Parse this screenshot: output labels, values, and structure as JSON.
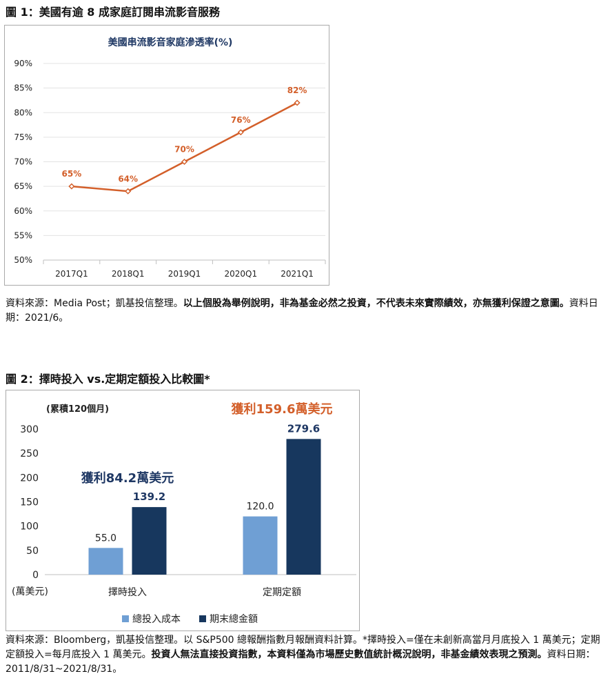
{
  "figure1": {
    "title": "圖 1：美國有逾 8 成家庭訂閱串流影音服務",
    "source_plain": "資料來源：Media Post；凱基投信整理。",
    "source_bold": "以上個股為舉例說明，非為基金必然之投資，不代表未來實際績效，亦無獲利保證之意圖。",
    "source_tail": "資料日期：2021/6。"
  },
  "figure2": {
    "title": "圖 2：擇時投入 vs.定期定額投入比較圖*",
    "source_plain": "資料來源：Bloomberg，凱基投信整理。以 S&P500 總報酬指數月報酬資料計算。*擇時投入=僅在未創新高當月月底投入 1 萬美元；定期定額投入=每月底投入 1 萬美元。",
    "source_bold": "投資人無法直接投資指數，本資料僅為市場歷史數值統計概況說明，非基金績效表現之預測。",
    "source_tail": "資料日期：2011/8/31~2021/8/31。"
  },
  "colors": {
    "line": "#d35f2a",
    "title_blue": "#1f3864",
    "bar_light": "#6f9fd4",
    "bar_dark": "#17375e",
    "profit_orange": "#d35f2a",
    "axis_text": "#222222"
  },
  "chart_data": [
    {
      "type": "line",
      "title": "美國串流影音家庭滲透率(%)",
      "x": [
        "2017Q1",
        "2018Q1",
        "2019Q1",
        "2020Q1",
        "2021Q1"
      ],
      "values": [
        65,
        64,
        70,
        76,
        82
      ],
      "data_labels": [
        "65%",
        "64%",
        "70%",
        "76%",
        "82%"
      ],
      "ylim": [
        50,
        90
      ],
      "yticks": [
        50,
        55,
        60,
        65,
        70,
        75,
        80,
        85,
        90
      ],
      "ytick_labels": [
        "50%",
        "55%",
        "60%",
        "65%",
        "70%",
        "75%",
        "80%",
        "85%",
        "90%"
      ],
      "grid": true,
      "xlabel": "",
      "ylabel": ""
    },
    {
      "type": "bar",
      "ylabel_top": "(累積120個月)",
      "unit_label": "(萬美元)",
      "categories": [
        "擇時投入",
        "定期定額"
      ],
      "series": [
        {
          "name": "總投入成本",
          "values": [
            55.0,
            120.0
          ],
          "labels": [
            "55.0",
            "120.0"
          ]
        },
        {
          "name": "期末總金額",
          "values": [
            139.2,
            279.6
          ],
          "labels": [
            "139.2",
            "279.6"
          ]
        }
      ],
      "annotations": [
        "獲利84.2萬美元",
        "獲利159.6萬美元"
      ],
      "ylim": [
        0,
        300
      ],
      "yticks": [
        0,
        50,
        100,
        150,
        200,
        250,
        300
      ],
      "ytick_labels": [
        "0",
        "50",
        "100",
        "150",
        "200",
        "250",
        "300"
      ],
      "legend_position": "bottom",
      "grid": false
    }
  ]
}
